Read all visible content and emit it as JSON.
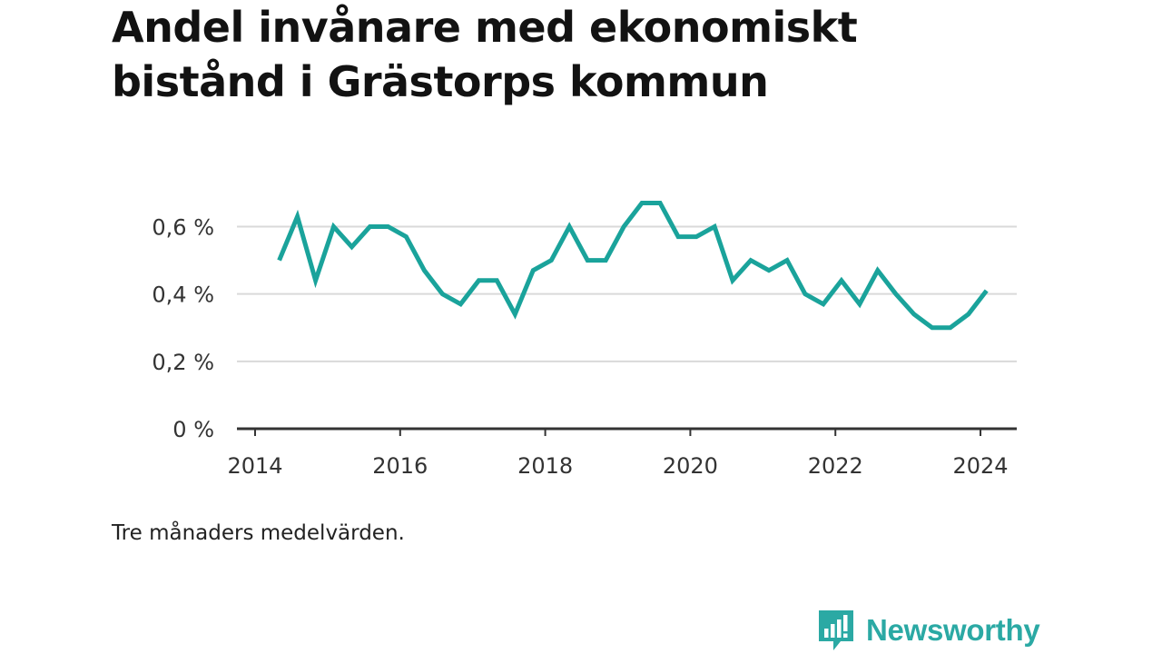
{
  "title_lines": [
    "Andel invånare med ekonomiskt",
    "bistånd i Grästorps kommun"
  ],
  "note": "Tre månaders medelvärden.",
  "brand": {
    "name": "Newsworthy",
    "icon": "bar-chart-speech-bubble-icon",
    "color": "#2ba9a4"
  },
  "chart_data": {
    "type": "line",
    "y_tick_values": [
      0,
      0.2,
      0.4,
      0.6
    ],
    "y_tick_labels": [
      "0 %",
      "0,2 %",
      "0,4 %",
      "0,6 %"
    ],
    "x_ticks": [
      2014,
      2016,
      2018,
      2020,
      2022,
      2024
    ],
    "ylim": [
      0,
      0.72
    ],
    "xlim": [
      "2013-10",
      "2024-07"
    ],
    "grid": true,
    "line_color": "#1aa39b",
    "series": [
      {
        "x": [
          "2014-05",
          "2014-08",
          "2014-11",
          "2015-02",
          "2015-05",
          "2015-08",
          "2015-11",
          "2016-02",
          "2016-05",
          "2016-08",
          "2016-11",
          "2017-02",
          "2017-05",
          "2017-08",
          "2017-11",
          "2018-02",
          "2018-05",
          "2018-08",
          "2018-11",
          "2019-02",
          "2019-05",
          "2019-08",
          "2019-11",
          "2020-02",
          "2020-05",
          "2020-08",
          "2020-11",
          "2021-02",
          "2021-05",
          "2021-08",
          "2021-11",
          "2022-02",
          "2022-05",
          "2022-08",
          "2022-11",
          "2023-02",
          "2023-05",
          "2023-08",
          "2023-11",
          "2024-02"
        ],
        "values": [
          0.5,
          0.63,
          0.44,
          0.6,
          0.54,
          0.6,
          0.6,
          0.57,
          0.47,
          0.4,
          0.37,
          0.44,
          0.44,
          0.34,
          0.47,
          0.5,
          0.6,
          0.5,
          0.5,
          0.6,
          0.67,
          0.67,
          0.57,
          0.57,
          0.6,
          0.44,
          0.5,
          0.47,
          0.5,
          0.4,
          0.37,
          0.44,
          0.37,
          0.47,
          0.4,
          0.34,
          0.3,
          0.3,
          0.34,
          0.41
        ]
      }
    ]
  }
}
